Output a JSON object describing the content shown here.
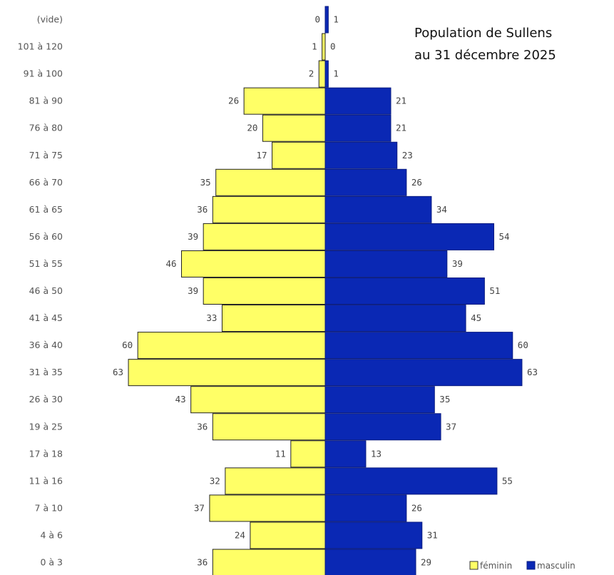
{
  "chart_data": {
    "type": "bar",
    "orientation": "horizontal-pyramid",
    "title_lines": [
      "Population de Sullens",
      "au 31 décembre 2025"
    ],
    "categories": [
      "(vide)",
      "101 à 120",
      "91 à 100",
      "81 à 90",
      "76 à 80",
      "71 à 75",
      "66 à 70",
      "61 à 65",
      "56 à 60",
      "51 à 55",
      "46 à 50",
      "41 à 45",
      "36 à 40",
      "31 à 35",
      "26 à 30",
      "19 à 25",
      "17 à 18",
      "11 à 16",
      "7 à 10",
      "4 à 6",
      "0 à 3"
    ],
    "series": [
      {
        "name": "féminin",
        "color": "#ffff66",
        "values": [
          0,
          1,
          2,
          26,
          20,
          17,
          35,
          36,
          39,
          46,
          39,
          33,
          60,
          63,
          43,
          36,
          11,
          32,
          37,
          24,
          36
        ]
      },
      {
        "name": "masculin",
        "color": "#0a28b4",
        "values": [
          1,
          0,
          1,
          21,
          21,
          23,
          26,
          34,
          54,
          39,
          51,
          45,
          60,
          63,
          35,
          37,
          13,
          55,
          26,
          31,
          29
        ]
      }
    ],
    "legend_position": "bottom-right",
    "grid": false
  }
}
